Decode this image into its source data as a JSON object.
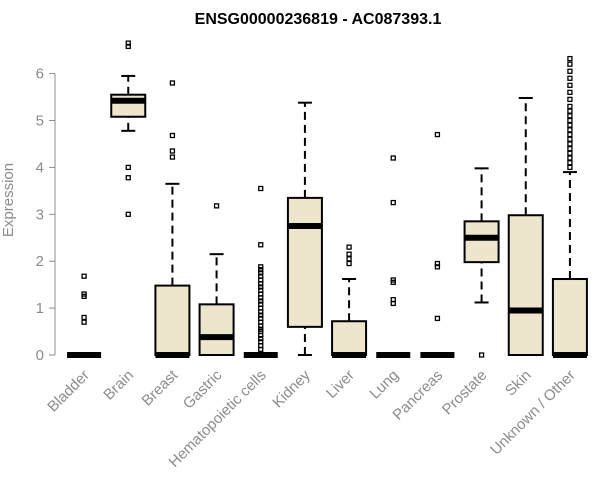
{
  "chart_data": {
    "type": "boxplot",
    "title": "ENSG00000236819 - AC087393.1",
    "xlabel": "",
    "ylabel": "Expression",
    "ylim": [
      0,
      6.2
    ],
    "yticks": [
      0,
      1,
      2,
      3,
      4,
      5,
      6
    ],
    "box_fill": "#ede6cd",
    "median_color": "#000000",
    "categories": [
      "Bladder",
      "Brain",
      "Breast",
      "Gastric",
      "Hematopoietic cells",
      "Kidney",
      "Liver",
      "Lung",
      "Pancreas",
      "Prostate",
      "Skin",
      "Unknown / Other"
    ],
    "boxes": [
      {
        "label": "Bladder",
        "whisker_low": 0,
        "q1": 0,
        "median": 0,
        "q3": 0,
        "whisker_high": 0,
        "outliers": [
          0.7,
          0.8,
          1.25,
          1.3,
          1.68
        ]
      },
      {
        "label": "Brain",
        "whisker_low": 4.78,
        "q1": 5.08,
        "median": 5.42,
        "q3": 5.55,
        "whisker_high": 5.95,
        "outliers": [
          3.0,
          3.78,
          4.0,
          6.58,
          6.65
        ]
      },
      {
        "label": "Breast",
        "whisker_low": 0,
        "q1": 0,
        "median": 0,
        "q3": 1.48,
        "whisker_high": 3.65,
        "outliers": [
          4.22,
          4.35,
          4.68,
          5.8
        ]
      },
      {
        "label": "Gastric",
        "whisker_low": 0,
        "q1": 0,
        "median": 0.38,
        "q3": 1.08,
        "whisker_high": 2.15,
        "outliers": [
          3.18
        ]
      },
      {
        "label": "Hematopoietic cells",
        "whisker_low": 0,
        "q1": 0,
        "median": 0,
        "q3": 0,
        "whisker_high": 0,
        "outliers": [
          0.12,
          0.2,
          0.28,
          0.35,
          0.42,
          0.5,
          0.55,
          0.62,
          0.7,
          0.78,
          0.85,
          0.92,
          1.0,
          1.08,
          1.15,
          1.22,
          1.3,
          1.38,
          1.45,
          1.52,
          1.6,
          1.68,
          1.75,
          1.82,
          1.88,
          2.35,
          3.55
        ]
      },
      {
        "label": "Kidney",
        "whisker_low": 0,
        "q1": 0.6,
        "median": 2.75,
        "q3": 3.35,
        "whisker_high": 5.38,
        "outliers": []
      },
      {
        "label": "Liver",
        "whisker_low": 0,
        "q1": 0,
        "median": 0,
        "q3": 0.72,
        "whisker_high": 1.62,
        "outliers": [
          1.95,
          2.05,
          2.15,
          2.3
        ]
      },
      {
        "label": "Lung",
        "whisker_low": 0,
        "q1": 0,
        "median": 0,
        "q3": 0,
        "whisker_high": 0,
        "outliers": [
          1.1,
          1.18,
          1.55,
          1.6,
          3.25,
          4.2
        ]
      },
      {
        "label": "Pancreas",
        "whisker_low": 0,
        "q1": 0,
        "median": 0,
        "q3": 0,
        "whisker_high": 0,
        "outliers": [
          0.78,
          1.88,
          1.95,
          4.7
        ]
      },
      {
        "label": "Prostate",
        "whisker_low": 1.12,
        "q1": 1.98,
        "median": 2.5,
        "q3": 2.85,
        "whisker_high": 3.98,
        "outliers": [
          0
        ]
      },
      {
        "label": "Skin",
        "whisker_low": 0,
        "q1": 0,
        "median": 0.95,
        "q3": 2.98,
        "whisker_high": 5.48,
        "outliers": []
      },
      {
        "label": "Unknown / Other",
        "whisker_low": 0,
        "q1": 0,
        "median": 0,
        "q3": 1.62,
        "whisker_high": 3.9,
        "outliers": [
          4.0,
          4.1,
          4.2,
          4.3,
          4.4,
          4.5,
          4.6,
          4.7,
          4.8,
          4.9,
          5.0,
          5.1,
          5.2,
          5.3,
          5.45,
          5.6,
          5.75,
          5.9,
          6.05,
          6.2,
          6.32
        ]
      }
    ]
  }
}
